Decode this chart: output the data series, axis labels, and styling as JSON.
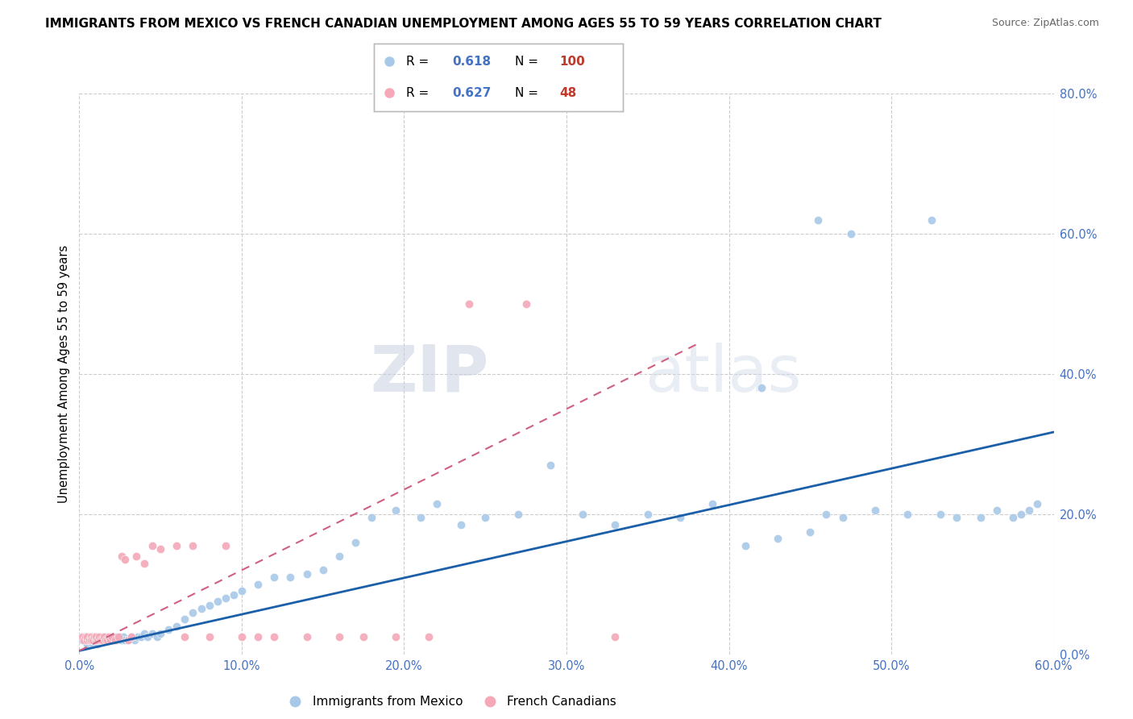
{
  "title": "IMMIGRANTS FROM MEXICO VS FRENCH CANADIAN UNEMPLOYMENT AMONG AGES 55 TO 59 YEARS CORRELATION CHART",
  "source": "Source: ZipAtlas.com",
  "ylabel": "Unemployment Among Ages 55 to 59 years",
  "series1_label": "Immigrants from Mexico",
  "series2_label": "French Canadians",
  "series1_color": "#a8c8e8",
  "series2_color": "#f4a8b8",
  "series1_line_color": "#1a5fa8",
  "series2_line_color": "#d06080",
  "r1": "0.618",
  "n1": "100",
  "r2": "0.627",
  "n2": "48",
  "xlim": [
    0.0,
    0.6
  ],
  "ylim": [
    0.0,
    0.8
  ],
  "xticks": [
    0.0,
    0.1,
    0.2,
    0.3,
    0.4,
    0.5,
    0.6
  ],
  "yticks": [
    0.0,
    0.2,
    0.4,
    0.6,
    0.8
  ],
  "background_color": "#ffffff",
  "watermark_zip": "ZIP",
  "watermark_atlas": "atlas",
  "legend_r_color": "#4472c4",
  "legend_n_color": "#c0392b",
  "tick_color": "#4472c4",
  "title_fontsize": 11,
  "source_fontsize": 9,
  "blue_line_slope": 0.52,
  "blue_line_intercept": 0.005,
  "pink_line_slope": 1.15,
  "pink_line_intercept": 0.005,
  "pink_line_xmax": 0.38,
  "s1x": [
    0.002,
    0.003,
    0.004,
    0.004,
    0.005,
    0.005,
    0.006,
    0.006,
    0.007,
    0.007,
    0.008,
    0.008,
    0.009,
    0.009,
    0.01,
    0.01,
    0.011,
    0.011,
    0.012,
    0.012,
    0.013,
    0.013,
    0.014,
    0.015,
    0.015,
    0.016,
    0.016,
    0.017,
    0.018,
    0.018,
    0.019,
    0.02,
    0.02,
    0.021,
    0.022,
    0.022,
    0.023,
    0.025,
    0.026,
    0.027,
    0.028,
    0.03,
    0.032,
    0.034,
    0.036,
    0.038,
    0.04,
    0.042,
    0.045,
    0.048,
    0.05,
    0.055,
    0.06,
    0.065,
    0.07,
    0.075,
    0.08,
    0.085,
    0.09,
    0.095,
    0.1,
    0.11,
    0.12,
    0.13,
    0.14,
    0.15,
    0.16,
    0.17,
    0.18,
    0.195,
    0.21,
    0.22,
    0.235,
    0.25,
    0.27,
    0.29,
    0.31,
    0.33,
    0.35,
    0.37,
    0.39,
    0.41,
    0.43,
    0.45,
    0.46,
    0.47,
    0.49,
    0.51,
    0.53,
    0.54,
    0.555,
    0.565,
    0.575,
    0.58,
    0.585,
    0.59,
    0.455,
    0.525,
    0.475,
    0.42
  ],
  "s1y": [
    0.02,
    0.025,
    0.02,
    0.025,
    0.015,
    0.02,
    0.025,
    0.02,
    0.02,
    0.025,
    0.015,
    0.02,
    0.025,
    0.02,
    0.02,
    0.025,
    0.02,
    0.015,
    0.02,
    0.025,
    0.02,
    0.02,
    0.025,
    0.02,
    0.025,
    0.02,
    0.025,
    0.02,
    0.02,
    0.025,
    0.02,
    0.025,
    0.02,
    0.02,
    0.025,
    0.02,
    0.02,
    0.025,
    0.02,
    0.025,
    0.02,
    0.02,
    0.025,
    0.02,
    0.025,
    0.025,
    0.03,
    0.025,
    0.03,
    0.025,
    0.03,
    0.035,
    0.04,
    0.05,
    0.06,
    0.065,
    0.07,
    0.075,
    0.08,
    0.085,
    0.09,
    0.1,
    0.11,
    0.11,
    0.115,
    0.12,
    0.14,
    0.16,
    0.195,
    0.205,
    0.195,
    0.215,
    0.185,
    0.195,
    0.2,
    0.27,
    0.2,
    0.185,
    0.2,
    0.195,
    0.215,
    0.155,
    0.165,
    0.175,
    0.2,
    0.195,
    0.205,
    0.2,
    0.2,
    0.195,
    0.195,
    0.205,
    0.195,
    0.2,
    0.205,
    0.215,
    0.62,
    0.62,
    0.6,
    0.38
  ],
  "s2x": [
    0.002,
    0.003,
    0.004,
    0.005,
    0.005,
    0.006,
    0.007,
    0.007,
    0.008,
    0.009,
    0.01,
    0.01,
    0.011,
    0.012,
    0.013,
    0.014,
    0.015,
    0.016,
    0.017,
    0.018,
    0.019,
    0.02,
    0.022,
    0.024,
    0.026,
    0.028,
    0.03,
    0.032,
    0.035,
    0.04,
    0.045,
    0.05,
    0.06,
    0.065,
    0.07,
    0.08,
    0.09,
    0.1,
    0.11,
    0.12,
    0.14,
    0.16,
    0.175,
    0.195,
    0.215,
    0.24,
    0.275,
    0.33
  ],
  "s2y": [
    0.025,
    0.02,
    0.025,
    0.02,
    0.025,
    0.02,
    0.025,
    0.02,
    0.02,
    0.025,
    0.02,
    0.025,
    0.02,
    0.025,
    0.02,
    0.02,
    0.025,
    0.02,
    0.02,
    0.025,
    0.02,
    0.025,
    0.02,
    0.025,
    0.14,
    0.135,
    0.02,
    0.025,
    0.14,
    0.13,
    0.155,
    0.15,
    0.155,
    0.025,
    0.155,
    0.025,
    0.155,
    0.025,
    0.025,
    0.025,
    0.025,
    0.025,
    0.025,
    0.025,
    0.025,
    0.5,
    0.5,
    0.025
  ]
}
